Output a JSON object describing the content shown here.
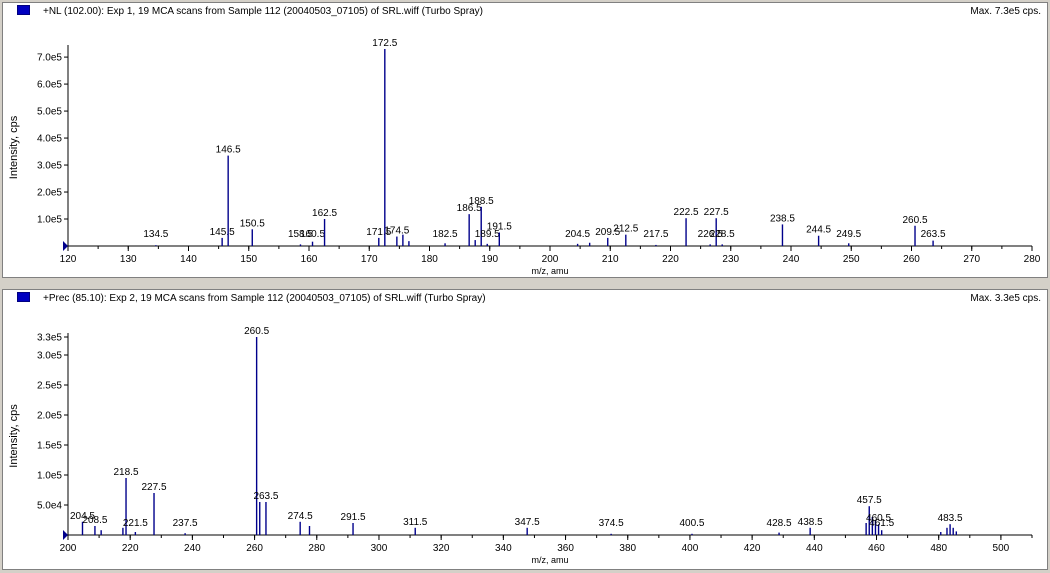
{
  "chart_data": [
    {
      "type": "bar",
      "header_title": "+NL (102.00): Exp 1, 19 MCA scans from Sample 112 (20040503_07105) of SRL.wiff (Turbo Spray)",
      "max_label": "Max. 7.3e5 cps.",
      "xlabel": "m/z, amu",
      "ylabel": "Intensity, cps",
      "xlim": [
        120,
        280
      ],
      "ylim": [
        0,
        730000
      ],
      "x_ticks": [
        120,
        130,
        140,
        150,
        160,
        170,
        180,
        190,
        200,
        210,
        220,
        230,
        240,
        250,
        260,
        270,
        280
      ],
      "y_ticks": [
        {
          "v": 100000,
          "label": "1.0e5"
        },
        {
          "v": 200000,
          "label": "2.0e5"
        },
        {
          "v": 300000,
          "label": "3.0e5"
        },
        {
          "v": 400000,
          "label": "4.0e5"
        },
        {
          "v": 500000,
          "label": "5.0e5"
        },
        {
          "v": 600000,
          "label": "6.0e5"
        },
        {
          "v": 700000,
          "label": "7.0e5"
        }
      ],
      "bar_color": "#00008b",
      "peaks": [
        {
          "x": 134.5,
          "y": 3000,
          "label": "134.5"
        },
        {
          "x": 145.5,
          "y": 30000,
          "label": "145.5"
        },
        {
          "x": 146.5,
          "y": 335000,
          "label": "146.5"
        },
        {
          "x": 150.5,
          "y": 62000,
          "label": "150.5"
        },
        {
          "x": 158.5,
          "y": 6000,
          "label": "158.5"
        },
        {
          "x": 160.5,
          "y": 16000,
          "label": "160.5"
        },
        {
          "x": 162.5,
          "y": 100000,
          "label": "162.5"
        },
        {
          "x": 171.5,
          "y": 30000,
          "label": "171.5"
        },
        {
          "x": 172.5,
          "y": 730000,
          "label": "172.5"
        },
        {
          "x": 174.5,
          "y": 35000,
          "label": "174.5"
        },
        {
          "x": 175.5,
          "y": 42000,
          "label": ""
        },
        {
          "x": 176.5,
          "y": 18000,
          "label": ""
        },
        {
          "x": 182.5,
          "y": 10000,
          "label": "182.5"
        },
        {
          "x": 186.5,
          "y": 118000,
          "label": "186.5"
        },
        {
          "x": 187.5,
          "y": 22000,
          "label": ""
        },
        {
          "x": 188.5,
          "y": 145000,
          "label": "188.5"
        },
        {
          "x": 189.5,
          "y": 8000,
          "label": "189.5"
        },
        {
          "x": 191.5,
          "y": 50000,
          "label": "191.5"
        },
        {
          "x": 204.5,
          "y": 8000,
          "label": "204.5"
        },
        {
          "x": 206.5,
          "y": 12000,
          "label": ""
        },
        {
          "x": 209.5,
          "y": 30000,
          "label": "209.5"
        },
        {
          "x": 212.5,
          "y": 42000,
          "label": "212.5"
        },
        {
          "x": 217.5,
          "y": 4000,
          "label": "217.5"
        },
        {
          "x": 222.5,
          "y": 103000,
          "label": "222.5"
        },
        {
          "x": 226.5,
          "y": 6000,
          "label": "226.5"
        },
        {
          "x": 227.5,
          "y": 103000,
          "label": "227.5"
        },
        {
          "x": 228.5,
          "y": 6000,
          "label": "228.5"
        },
        {
          "x": 238.5,
          "y": 80000,
          "label": "238.5"
        },
        {
          "x": 244.5,
          "y": 38000,
          "label": "244.5"
        },
        {
          "x": 249.5,
          "y": 10000,
          "label": "249.5"
        },
        {
          "x": 260.5,
          "y": 75000,
          "label": "260.5"
        },
        {
          "x": 263.5,
          "y": 20000,
          "label": "263.5"
        }
      ]
    },
    {
      "type": "bar",
      "header_title": "+Prec (85.10): Exp 2, 19 MCA scans from Sample 112 (20040503_07105) of SRL.wiff (Turbo Spray)",
      "max_label": "Max. 3.3e5 cps.",
      "xlabel": "m/z, amu",
      "ylabel": "Intensity, cps",
      "xlim": [
        200,
        510
      ],
      "ylim": [
        0,
        330000
      ],
      "x_ticks": [
        200,
        220,
        240,
        260,
        280,
        300,
        320,
        340,
        360,
        380,
        400,
        420,
        440,
        460,
        480,
        500
      ],
      "y_ticks": [
        {
          "v": 50000,
          "label": "5.0e4"
        },
        {
          "v": 100000,
          "label": "1.0e5"
        },
        {
          "v": 150000,
          "label": "1.5e5"
        },
        {
          "v": 200000,
          "label": "2.0e5"
        },
        {
          "v": 250000,
          "label": "2.5e5"
        },
        {
          "v": 300000,
          "label": "3.0e5"
        },
        {
          "v": 330000,
          "label": "3.3e5"
        }
      ],
      "bar_color": "#00008b",
      "peaks": [
        {
          "x": 204.5,
          "y": 22000,
          "label": "204.5"
        },
        {
          "x": 208.5,
          "y": 15000,
          "label": "208.5"
        },
        {
          "x": 210.5,
          "y": 8000,
          "label": ""
        },
        {
          "x": 217.5,
          "y": 12000,
          "label": ""
        },
        {
          "x": 218.5,
          "y": 95000,
          "label": "218.5"
        },
        {
          "x": 221.5,
          "y": 5000,
          "label": "221.5"
        },
        {
          "x": 227.5,
          "y": 70000,
          "label": "227.5"
        },
        {
          "x": 237.5,
          "y": 3000,
          "label": "237.5"
        },
        {
          "x": 260.5,
          "y": 330000,
          "label": "260.5"
        },
        {
          "x": 261.5,
          "y": 55000,
          "label": ""
        },
        {
          "x": 263.5,
          "y": 55000,
          "label": "263.5"
        },
        {
          "x": 274.5,
          "y": 22000,
          "label": "274.5"
        },
        {
          "x": 277.5,
          "y": 15000,
          "label": ""
        },
        {
          "x": 291.5,
          "y": 20000,
          "label": "291.5"
        },
        {
          "x": 311.5,
          "y": 12000,
          "label": "311.5"
        },
        {
          "x": 347.5,
          "y": 12000,
          "label": "347.5"
        },
        {
          "x": 374.5,
          "y": 2000,
          "label": "374.5"
        },
        {
          "x": 400.5,
          "y": 2000,
          "label": "400.5"
        },
        {
          "x": 428.5,
          "y": 4000,
          "label": "428.5"
        },
        {
          "x": 438.5,
          "y": 12000,
          "label": "438.5"
        },
        {
          "x": 456.5,
          "y": 20000,
          "label": ""
        },
        {
          "x": 457.5,
          "y": 48000,
          "label": "457.5"
        },
        {
          "x": 458.5,
          "y": 30000,
          "label": ""
        },
        {
          "x": 459.5,
          "y": 25000,
          "label": ""
        },
        {
          "x": 460.5,
          "y": 18000,
          "label": "460.5"
        },
        {
          "x": 461.5,
          "y": 8000,
          "label": "461.5"
        },
        {
          "x": 480.5,
          "y": 5000,
          "label": ""
        },
        {
          "x": 482.5,
          "y": 12000,
          "label": ""
        },
        {
          "x": 483.5,
          "y": 18000,
          "label": "483.5"
        },
        {
          "x": 484.5,
          "y": 12000,
          "label": ""
        },
        {
          "x": 485.5,
          "y": 6000,
          "label": ""
        }
      ]
    }
  ]
}
